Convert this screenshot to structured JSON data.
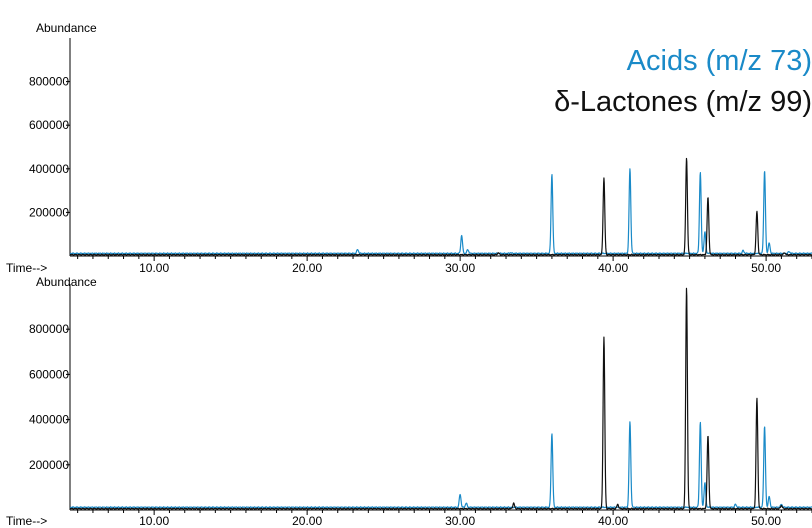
{
  "legend": [
    {
      "label": "Acids (m/z 73)",
      "color": "#1a8ac8"
    },
    {
      "label": "δ-Lactones (m/z 99)",
      "color": "#111111"
    }
  ],
  "chart_data": [
    {
      "type": "line",
      "ylabel": "Abundance",
      "xlabel": "Time-->",
      "x_ticks": [
        "10.00",
        "20.00",
        "30.00",
        "40.00",
        "50.00"
      ],
      "y_ticks": [
        "200000",
        "400000",
        "600000",
        "800000"
      ],
      "xlim": [
        4.5,
        53.0
      ],
      "ylim": [
        0,
        1000000
      ],
      "series": [
        {
          "name": "Acids (m/z 73)",
          "color": "#1a8ac8",
          "baseline": 12000,
          "peaks": [
            [
              23.3,
              30000
            ],
            [
              30.1,
              95000
            ],
            [
              30.5,
              30000
            ],
            [
              33.3,
              15000
            ],
            [
              36.0,
              375000
            ],
            [
              41.1,
              400000
            ],
            [
              45.7,
              385000
            ],
            [
              46.0,
              110000
            ],
            [
              48.5,
              25000
            ],
            [
              49.9,
              390000
            ],
            [
              50.2,
              60000
            ],
            [
              51.5,
              20000
            ]
          ]
        },
        {
          "name": "δ-Lactones (m/z 99)",
          "color": "#111111",
          "baseline": 6000,
          "peaks": [
            [
              32.5,
              15000
            ],
            [
              39.4,
              358000
            ],
            [
              44.8,
              450000
            ],
            [
              46.2,
              270000
            ],
            [
              49.4,
              205000
            ],
            [
              51.2,
              15000
            ]
          ]
        }
      ]
    },
    {
      "type": "line",
      "ylabel": "Abundance",
      "xlabel": "Time-->",
      "x_ticks": [
        "10.00",
        "20.00",
        "30.00",
        "40.00",
        "50.00"
      ],
      "y_ticks": [
        "200000",
        "400000",
        "600000",
        "800000"
      ],
      "xlim": [
        4.5,
        53.0
      ],
      "ylim": [
        0,
        1000000
      ],
      "series": [
        {
          "name": "Acids (m/z 73)",
          "color": "#1a8ac8",
          "baseline": 12000,
          "peaks": [
            [
              30.0,
              70000
            ],
            [
              30.4,
              30000
            ],
            [
              36.0,
              338000
            ],
            [
              41.1,
              390000
            ],
            [
              45.7,
              390000
            ],
            [
              46.0,
              120000
            ],
            [
              48.0,
              25000
            ],
            [
              49.9,
              370000
            ],
            [
              50.2,
              60000
            ],
            [
              51.0,
              25000
            ]
          ]
        },
        {
          "name": "δ-Lactones (m/z 99)",
          "color": "#111111",
          "baseline": 6000,
          "peaks": [
            [
              33.5,
              30000
            ],
            [
              39.4,
              765000
            ],
            [
              40.3,
              25000
            ],
            [
              44.8,
              985000
            ],
            [
              46.2,
              330000
            ],
            [
              49.4,
              495000
            ],
            [
              51.0,
              20000
            ]
          ]
        }
      ]
    }
  ]
}
